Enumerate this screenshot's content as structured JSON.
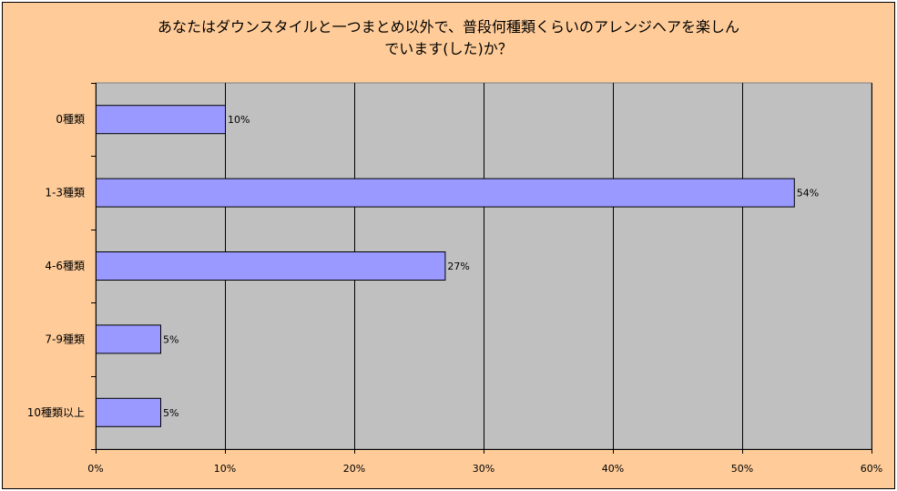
{
  "chart_data": {
    "type": "bar",
    "orientation": "horizontal",
    "title_lines": [
      "あなたはダウンスタイルと一つまとめ以外で、普段何種類くらいのアレンジヘアを楽しん",
      "でいます(した)か？"
    ],
    "categories": [
      "0種類",
      "1-3種類",
      "4-6種類",
      "7-9種類",
      "10種類以上"
    ],
    "values": [
      10,
      54,
      27,
      5,
      5
    ],
    "data_labels": [
      "10%",
      "54%",
      "27%",
      "5%",
      "5%"
    ],
    "xlim": [
      0,
      60
    ],
    "x_ticks": [
      0,
      10,
      20,
      30,
      40,
      50,
      60
    ],
    "x_tick_labels": [
      "0%",
      "10%",
      "20%",
      "30%",
      "40%",
      "50%",
      "60%"
    ],
    "xlabel": "",
    "ylabel": "",
    "grid": true,
    "legend": "none",
    "colors": {
      "background": "#ffcc99",
      "plot_area": "#c0c0c0",
      "bar": "#9999ff",
      "bar_edge": "#000000",
      "gridline": "#000000"
    }
  }
}
